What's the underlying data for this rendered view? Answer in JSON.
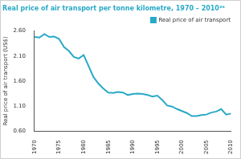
{
  "chart_data": {
    "type": "line",
    "title": "Real price of air transport per tonne kilometre, 1970 – 2010²⁶",
    "y_label": "Real price of air transport (US$)",
    "legend": "top right",
    "grid": false,
    "series": [
      {
        "name": "Real price of air transport",
        "color": "#29a9c8",
        "x": [
          1970,
          1971,
          1972,
          1973,
          1974,
          1975,
          1976,
          1977,
          1978,
          1979,
          1980,
          1981,
          1982,
          1983,
          1984,
          1985,
          1986,
          1987,
          1988,
          1989,
          1990,
          1991,
          1992,
          1993,
          1994,
          1995,
          1996,
          1997,
          1998,
          1999,
          2000,
          2001,
          2002,
          2003,
          2004,
          2005,
          2006,
          2007,
          2008,
          2009,
          2010
        ],
        "values": [
          2.48,
          2.47,
          2.54,
          2.48,
          2.49,
          2.44,
          2.28,
          2.2,
          2.08,
          2.05,
          2.12,
          1.9,
          1.68,
          1.55,
          1.45,
          1.37,
          1.36,
          1.38,
          1.37,
          1.32,
          1.34,
          1.35,
          1.34,
          1.32,
          1.29,
          1.31,
          1.22,
          1.11,
          1.09,
          1.04,
          1.0,
          0.96,
          0.9,
          0.9,
          0.92,
          0.93,
          0.97,
          0.99,
          1.04,
          0.93,
          0.95
        ]
      }
    ],
    "xlim": [
      1970,
      2010
    ],
    "xticks": [
      1970,
      1975,
      1980,
      1985,
      1990,
      1995,
      2000,
      2005,
      2010
    ],
    "ylim": [
      0.6,
      2.6
    ],
    "yticks": [
      {
        "value": 0.6,
        "label": "0.60"
      },
      {
        "value": 1.1,
        "label": "1.10"
      },
      {
        "value": 1.6,
        "label": "1.60"
      },
      {
        "value": 2.1,
        "label": "2.10"
      },
      {
        "value": 2.6,
        "label": "2.60"
      }
    ]
  }
}
